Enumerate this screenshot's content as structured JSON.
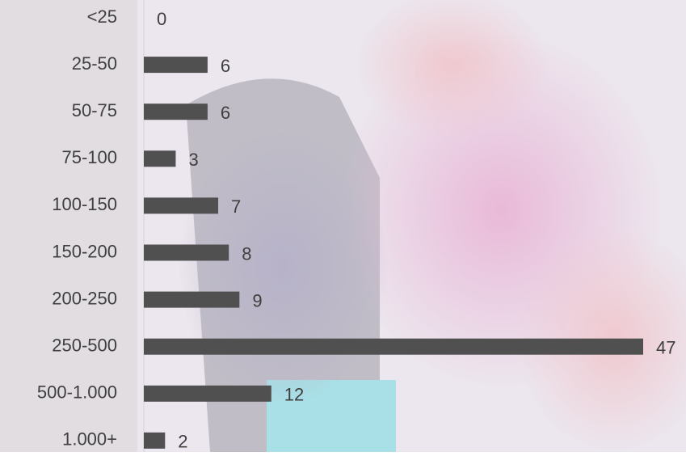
{
  "chart_data": {
    "type": "bar",
    "orientation": "horizontal",
    "categories": [
      "<25",
      "25-50",
      "50-75",
      "75-100",
      "100-150",
      "150-200",
      "200-250",
      "250-500",
      "500-1.000",
      "1.000+"
    ],
    "values": [
      0,
      6,
      6,
      3,
      7,
      8,
      9,
      47,
      12,
      2
    ],
    "color": "#505050"
  }
}
